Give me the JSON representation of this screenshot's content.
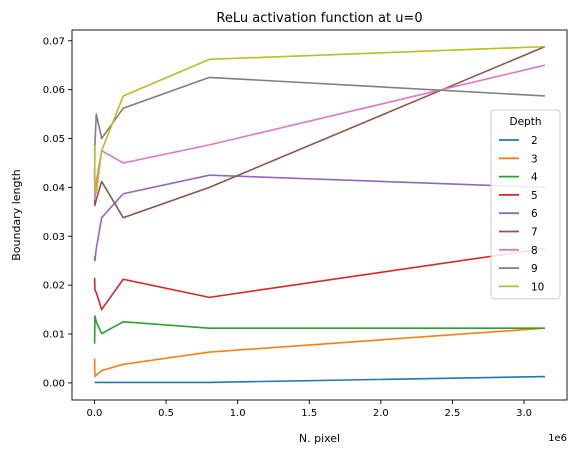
{
  "chart_data": {
    "type": "line",
    "title": "ReLu activation function at u=0",
    "xlabel": "N. pixel",
    "ylabel": "Boundary length",
    "x_offset_label": "1e6",
    "xlim": [
      -0.157,
      3.3
    ],
    "ylim": [
      -0.0035,
      0.0722
    ],
    "x_tick_values": [
      0,
      500000,
      1000000,
      1500000,
      2000000,
      2500000,
      3000000
    ],
    "x_tick_labels": [
      "0.0",
      "0.5",
      "1.0",
      "1.5",
      "2.0",
      "2.5",
      "3.0"
    ],
    "y_tick_values": [
      0,
      0.01,
      0.02,
      0.03,
      0.04,
      0.05,
      0.06,
      0.07
    ],
    "y_tick_labels": [
      "0.00",
      "0.01",
      "0.02",
      "0.03",
      "0.04",
      "0.05",
      "0.06",
      "0.07"
    ],
    "legend_title": "Depth",
    "legend_position": "center-right",
    "grid": false,
    "x": [
      784,
      3136,
      12544,
      50176,
      200704,
      802816,
      3145728
    ],
    "series": [
      {
        "name": "2",
        "color": "#1f77b4",
        "values": [
          0.0001,
          0.0001,
          0.0001,
          0.0001,
          0.0001,
          0.0001,
          0.0013
        ]
      },
      {
        "name": "3",
        "color": "#ff7f0e",
        "values": [
          0.005,
          0.0013,
          0.0016,
          0.0025,
          0.0038,
          0.0063,
          0.0112
        ]
      },
      {
        "name": "4",
        "color": "#2ca02c",
        "values": [
          0.008,
          0.0137,
          0.0125,
          0.0101,
          0.0125,
          0.0112,
          0.0112
        ]
      },
      {
        "name": "5",
        "color": "#d62728",
        "values": [
          0.0215,
          0.019,
          0.0185,
          0.015,
          0.0212,
          0.0175,
          0.0275
        ]
      },
      {
        "name": "6",
        "color": "#9467bd",
        "values": [
          0.026,
          0.025,
          0.0275,
          0.0338,
          0.0387,
          0.0425,
          0.04
        ]
      },
      {
        "name": "7",
        "color": "#8c564b",
        "values": [
          0.0375,
          0.0363,
          0.0375,
          0.0412,
          0.0338,
          0.04,
          0.0688
        ]
      },
      {
        "name": "8",
        "color": "#e377c2",
        "values": [
          0.0437,
          0.0375,
          0.0412,
          0.0475,
          0.045,
          0.0487,
          0.065
        ]
      },
      {
        "name": "9",
        "color": "#7f7f7f",
        "values": [
          0.0412,
          0.0487,
          0.055,
          0.05,
          0.0562,
          0.0625,
          0.0587
        ]
      },
      {
        "name": "10",
        "color": "#bcbd22",
        "values": [
          0.0487,
          0.04,
          0.0388,
          0.0475,
          0.0587,
          0.0662,
          0.0688
        ]
      }
    ]
  }
}
